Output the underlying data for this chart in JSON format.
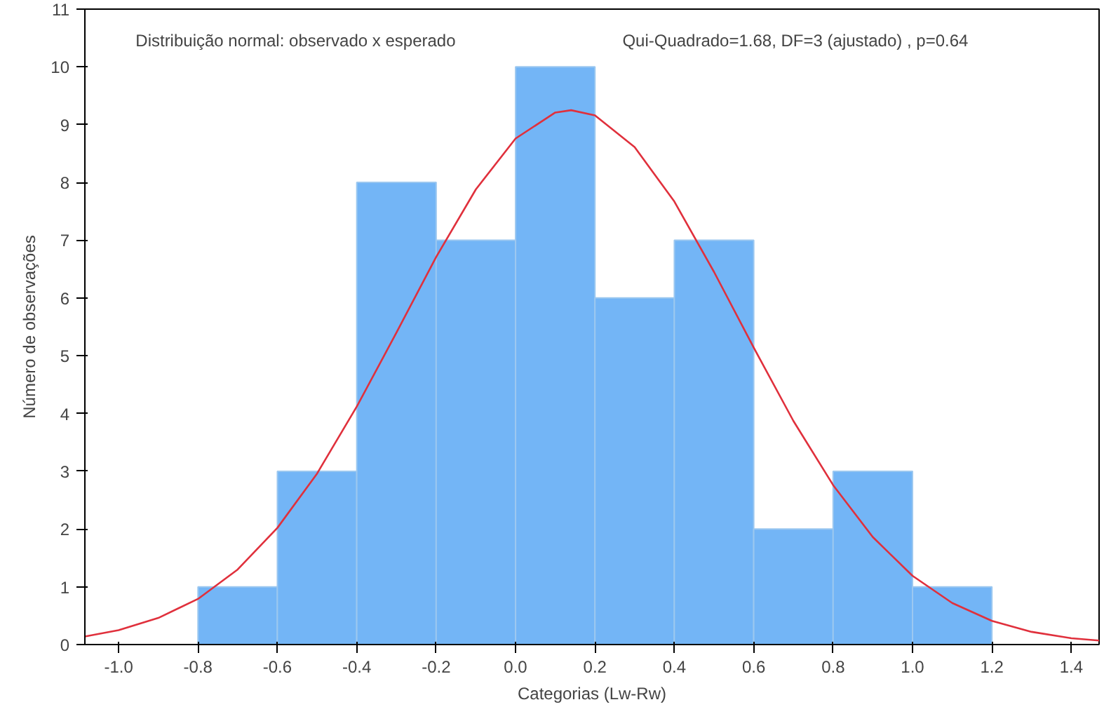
{
  "chart_data": {
    "type": "histogram",
    "xlabel": "Categorias (Lw-Rw)",
    "ylabel": "Número de observações",
    "annotations": [
      "Distribuição normal: observado x esperado",
      "Qui-Quadrado=1.68, DF=3 (ajustado) , p=0.64"
    ],
    "bins": [
      -0.8,
      -0.6,
      -0.4,
      -0.2,
      0.0,
      0.2,
      0.4,
      0.6,
      0.8,
      1.0,
      1.2
    ],
    "values": [
      1,
      3,
      8,
      7,
      10,
      6,
      7,
      2,
      3,
      1
    ],
    "color": "#5aa8f4",
    "series": [
      {
        "type": "line",
        "color": "#e0303c",
        "x": [
          -1.085,
          -1.0,
          -0.9,
          -0.8,
          -0.7,
          -0.6,
          -0.5,
          -0.4,
          -0.3,
          -0.2,
          -0.1,
          0.0,
          0.1,
          0.14,
          0.2,
          0.3,
          0.4,
          0.5,
          0.6,
          0.7,
          0.8,
          0.9,
          1.0,
          1.1,
          1.2,
          1.3,
          1.4,
          1.47
        ],
        "values": [
          0.14,
          0.25,
          0.46,
          0.79,
          1.3,
          2.02,
          2.96,
          4.12,
          5.4,
          6.71,
          7.88,
          8.76,
          9.21,
          9.25,
          9.16,
          8.61,
          7.67,
          6.45,
          5.14,
          3.87,
          2.76,
          1.86,
          1.19,
          0.72,
          0.41,
          0.22,
          0.11,
          0.07
        ]
      }
    ],
    "xlim": [
      -1.085,
      1.47
    ],
    "ylim": [
      0,
      11
    ],
    "xticks": [
      {
        "value": -1,
        "label": "-1.0"
      },
      -0.8,
      -0.6,
      -0.4,
      -0.2,
      {
        "value": 0,
        "label": "0.0"
      },
      0.2,
      0.4,
      0.6,
      0.8,
      {
        "value": 1,
        "label": "1.0"
      },
      1.2,
      1.4
    ],
    "yticks": [
      0,
      1,
      2,
      3,
      4,
      5,
      6,
      7,
      8,
      9,
      10,
      11
    ],
    "grid": false
  }
}
